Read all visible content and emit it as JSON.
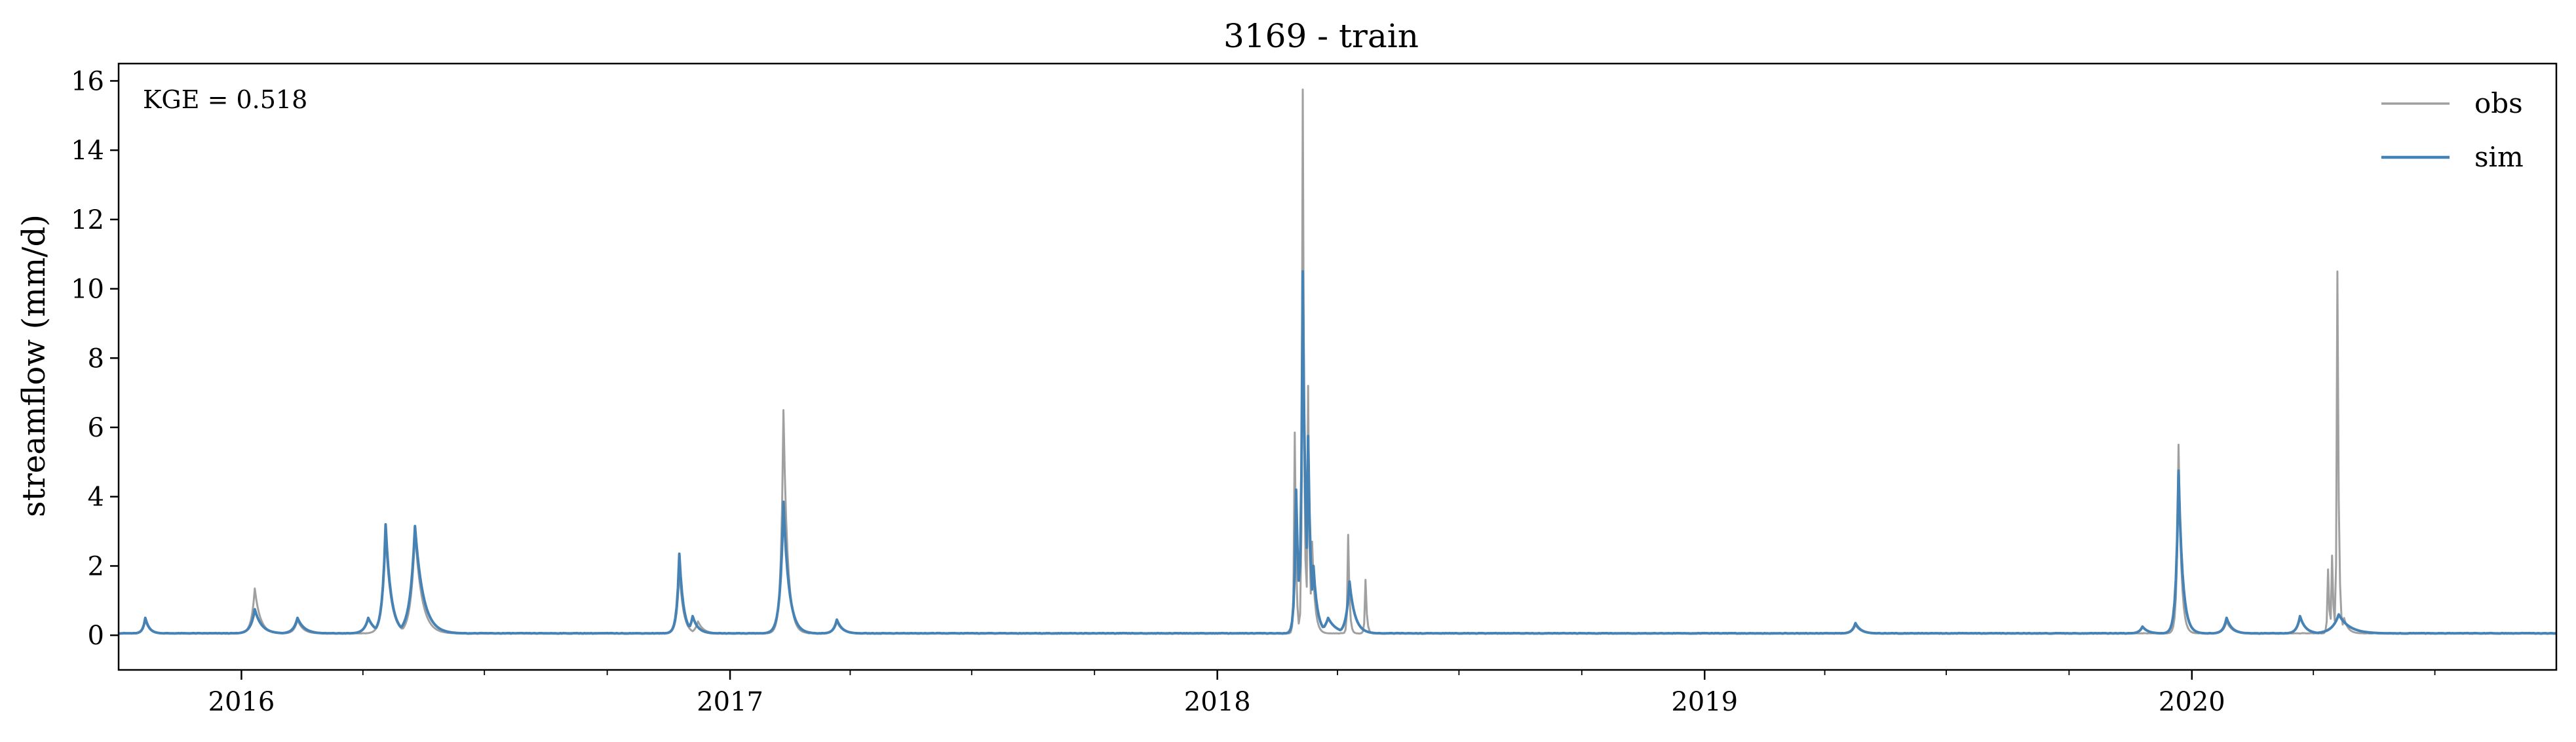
{
  "chart_data": {
    "type": "line",
    "title": "3169 - train",
    "xlabel": "",
    "ylabel": "streamflow (mm/d)",
    "annotation": "KGE = 0.518",
    "legend_placement": "top-right",
    "grid": false,
    "xlim": [
      "2015-10-01",
      "2020-09-30"
    ],
    "ylim": [
      -1.0,
      16.5
    ],
    "x_ticks": [
      {
        "date": "2016-01-01",
        "label": "2016"
      },
      {
        "date": "2017-01-01",
        "label": "2017"
      },
      {
        "date": "2018-01-01",
        "label": "2018"
      },
      {
        "date": "2019-01-01",
        "label": "2019"
      },
      {
        "date": "2020-01-01",
        "label": "2020"
      }
    ],
    "x_minor_ticks": [
      "2016-04-01",
      "2016-07-01",
      "2016-10-01",
      "2017-04-01",
      "2017-07-01",
      "2017-10-01",
      "2018-04-01",
      "2018-07-01",
      "2018-10-01",
      "2019-04-01",
      "2019-07-01",
      "2019-10-01",
      "2020-04-01",
      "2020-07-01"
    ],
    "y_ticks": [
      0,
      2,
      4,
      6,
      8,
      10,
      12,
      14,
      16
    ],
    "baseline": 0.05,
    "series": [
      {
        "name": "obs",
        "color": "#a0a0a0",
        "peaks": [
          {
            "date": "2015-10-21",
            "value": 0.45,
            "width": 3
          },
          {
            "date": "2016-01-11",
            "value": 1.35,
            "width": 4
          },
          {
            "date": "2016-02-12",
            "value": 0.45,
            "width": 4
          },
          {
            "date": "2016-04-18",
            "value": 2.9,
            "width": 4
          },
          {
            "date": "2016-05-10",
            "value": 3.0,
            "width": 5
          },
          {
            "date": "2016-11-24",
            "value": 1.9,
            "width": 3
          },
          {
            "date": "2016-12-08",
            "value": 0.4,
            "width": 4
          },
          {
            "date": "2017-02-10",
            "value": 6.5,
            "width": 3
          },
          {
            "date": "2017-03-22",
            "value": 0.4,
            "width": 4
          },
          {
            "date": "2018-02-28",
            "value": 5.85,
            "width": 1
          },
          {
            "date": "2018-03-06",
            "value": 15.75,
            "width": 1
          },
          {
            "date": "2018-03-10",
            "value": 7.2,
            "width": 1
          },
          {
            "date": "2018-03-13",
            "value": 2.7,
            "width": 2
          },
          {
            "date": "2018-04-09",
            "value": 2.9,
            "width": 1
          },
          {
            "date": "2018-04-22",
            "value": 1.6,
            "width": 1
          },
          {
            "date": "2019-04-24",
            "value": 0.3,
            "width": 4
          },
          {
            "date": "2019-12-22",
            "value": 5.5,
            "width": 2
          },
          {
            "date": "2020-01-27",
            "value": 0.4,
            "width": 4
          },
          {
            "date": "2020-04-12",
            "value": 1.9,
            "width": 1
          },
          {
            "date": "2020-04-15",
            "value": 2.3,
            "width": 1
          },
          {
            "date": "2020-04-19",
            "value": 10.5,
            "width": 1
          },
          {
            "date": "2020-04-24",
            "value": 0.5,
            "width": 3
          }
        ]
      },
      {
        "name": "sim",
        "color": "#4682b4",
        "peaks": [
          {
            "date": "2015-10-21",
            "value": 0.5,
            "width": 3
          },
          {
            "date": "2016-01-11",
            "value": 0.75,
            "width": 5
          },
          {
            "date": "2016-02-12",
            "value": 0.5,
            "width": 5
          },
          {
            "date": "2016-04-05",
            "value": 0.5,
            "width": 5
          },
          {
            "date": "2016-04-18",
            "value": 3.2,
            "width": 4
          },
          {
            "date": "2016-05-10",
            "value": 3.15,
            "width": 6
          },
          {
            "date": "2016-11-24",
            "value": 2.35,
            "width": 3
          },
          {
            "date": "2016-12-04",
            "value": 0.55,
            "width": 4
          },
          {
            "date": "2017-02-10",
            "value": 3.85,
            "width": 4
          },
          {
            "date": "2017-03-22",
            "value": 0.45,
            "width": 4
          },
          {
            "date": "2018-03-01",
            "value": 4.2,
            "width": 2
          },
          {
            "date": "2018-03-06",
            "value": 10.5,
            "width": 2
          },
          {
            "date": "2018-03-10",
            "value": 5.75,
            "width": 2
          },
          {
            "date": "2018-03-14",
            "value": 2.0,
            "width": 3
          },
          {
            "date": "2018-03-25",
            "value": 0.5,
            "width": 6
          },
          {
            "date": "2018-04-10",
            "value": 1.55,
            "width": 4
          },
          {
            "date": "2019-04-24",
            "value": 0.35,
            "width": 4
          },
          {
            "date": "2019-11-25",
            "value": 0.25,
            "width": 4
          },
          {
            "date": "2019-12-22",
            "value": 4.75,
            "width": 3
          },
          {
            "date": "2020-01-27",
            "value": 0.5,
            "width": 4
          },
          {
            "date": "2020-03-22",
            "value": 0.55,
            "width": 4
          },
          {
            "date": "2020-04-20",
            "value": 0.6,
            "width": 8
          }
        ]
      }
    ]
  }
}
